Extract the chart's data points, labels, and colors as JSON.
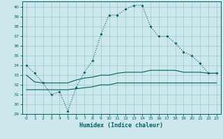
{
  "xlabel": "Humidex (Indice chaleur)",
  "bg_color": "#cce8ec",
  "grid_color": "#9cc8cc",
  "line_color": "#006060",
  "xlim": [
    -0.5,
    23.5
  ],
  "ylim": [
    29,
    40.6
  ],
  "yticks": [
    29,
    30,
    31,
    32,
    33,
    34,
    35,
    36,
    37,
    38,
    39,
    40
  ],
  "xticks": [
    0,
    1,
    2,
    3,
    4,
    5,
    6,
    7,
    8,
    9,
    10,
    11,
    12,
    13,
    14,
    15,
    16,
    17,
    18,
    19,
    20,
    21,
    22,
    23
  ],
  "line1_x": [
    0,
    1,
    2,
    3,
    4,
    5,
    6,
    7,
    8,
    9,
    10,
    11,
    12,
    13,
    14,
    15,
    16,
    17,
    18,
    19,
    20,
    21,
    22,
    23
  ],
  "line1_y": [
    34.0,
    33.2,
    32.2,
    31.0,
    31.3,
    29.3,
    31.7,
    33.3,
    34.5,
    37.2,
    39.2,
    39.2,
    39.8,
    40.2,
    40.2,
    38.0,
    37.0,
    37.0,
    36.3,
    35.4,
    35.0,
    34.2,
    33.2,
    33.2
  ],
  "line2_x": [
    0,
    1,
    2,
    3,
    4,
    5,
    6,
    7,
    8,
    9,
    10,
    11,
    12,
    13,
    14,
    15,
    16,
    17,
    18,
    19,
    20,
    21,
    22,
    23
  ],
  "line2_y": [
    33.0,
    32.3,
    32.2,
    32.2,
    32.2,
    32.2,
    32.5,
    32.7,
    32.8,
    33.0,
    33.0,
    33.2,
    33.3,
    33.3,
    33.3,
    33.5,
    33.5,
    33.5,
    33.5,
    33.3,
    33.3,
    33.3,
    33.2,
    33.2
  ],
  "line3_x": [
    0,
    1,
    2,
    3,
    4,
    5,
    6,
    7,
    8,
    9,
    10,
    11,
    12,
    13,
    14,
    15,
    16,
    17,
    18,
    19,
    20,
    21,
    22,
    23
  ],
  "line3_y": [
    31.5,
    31.5,
    31.5,
    31.5,
    31.5,
    31.5,
    31.6,
    31.7,
    31.8,
    32.0,
    32.0,
    32.2,
    32.2,
    32.2,
    32.2,
    32.2,
    32.2,
    32.2,
    32.2,
    32.2,
    32.2,
    32.2,
    32.2,
    32.2
  ]
}
